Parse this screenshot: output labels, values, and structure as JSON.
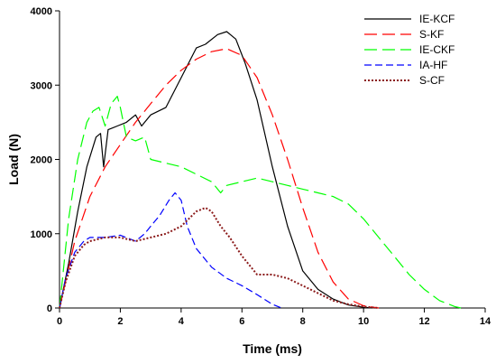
{
  "chart_data": {
    "type": "line",
    "title": "",
    "xlabel": "Time (ms)",
    "ylabel": "Load (N)",
    "xlim": [
      0,
      14
    ],
    "ylim": [
      0,
      4000
    ],
    "xticks": [
      "0",
      "2",
      "4",
      "6",
      "8",
      "10",
      "12",
      "14"
    ],
    "yticks": [
      "0",
      "1000",
      "2000",
      "3000",
      "4000"
    ],
    "grid": false,
    "legend": "top-right",
    "series": [
      {
        "name": "IE-KCF",
        "color": "#000000",
        "dash": "solid",
        "x": [
          0,
          0.3,
          0.6,
          0.9,
          1.2,
          1.35,
          1.45,
          1.6,
          1.9,
          2.2,
          2.5,
          2.7,
          3.0,
          3.5,
          4.0,
          4.5,
          4.8,
          5.2,
          5.5,
          5.8,
          6.1,
          6.5,
          7.0,
          7.5,
          8.0,
          8.5,
          9.0,
          9.5,
          10.0,
          10.3
        ],
        "y": [
          0,
          600,
          1300,
          1900,
          2300,
          2350,
          1900,
          2400,
          2450,
          2500,
          2600,
          2450,
          2600,
          2700,
          3100,
          3500,
          3550,
          3680,
          3720,
          3620,
          3300,
          2800,
          1900,
          1100,
          500,
          250,
          120,
          40,
          10,
          0
        ]
      },
      {
        "name": "S-KF",
        "color": "#ff0000",
        "dash": "long",
        "x": [
          0,
          0.5,
          1.0,
          1.5,
          2.0,
          2.5,
          3.0,
          3.5,
          4.0,
          4.5,
          5.0,
          5.5,
          6.0,
          6.5,
          7.0,
          7.5,
          8.0,
          8.5,
          9.0,
          9.5,
          10.0,
          10.5
        ],
        "y": [
          0,
          900,
          1500,
          1900,
          2200,
          2500,
          2750,
          3000,
          3200,
          3350,
          3450,
          3490,
          3400,
          3100,
          2600,
          2000,
          1350,
          750,
          350,
          120,
          30,
          0
        ]
      },
      {
        "name": "IE-CKF",
        "color": "#00ff00",
        "dash": "long",
        "x": [
          0,
          0.3,
          0.6,
          0.9,
          1.1,
          1.3,
          1.5,
          1.7,
          1.9,
          2.0,
          2.2,
          2.5,
          2.8,
          3.0,
          3.5,
          4.0,
          4.5,
          5.0,
          5.3,
          5.5,
          6.0,
          6.5,
          7.0,
          7.5,
          8.0,
          8.5,
          9.0,
          9.5,
          10.0,
          10.5,
          11.0,
          11.5,
          12.0,
          12.5,
          13.0,
          13.2
        ],
        "y": [
          0,
          1200,
          2000,
          2500,
          2650,
          2700,
          2450,
          2750,
          2850,
          2700,
          2300,
          2250,
          2300,
          2000,
          1950,
          1900,
          1800,
          1700,
          1550,
          1650,
          1700,
          1750,
          1700,
          1650,
          1600,
          1550,
          1500,
          1400,
          1200,
          950,
          700,
          450,
          250,
          100,
          20,
          0
        ]
      },
      {
        "name": "IA-HF",
        "color": "#0000ff",
        "dash": "short",
        "x": [
          0,
          0.2,
          0.5,
          0.8,
          1.0,
          1.5,
          2.0,
          2.5,
          2.8,
          3.0,
          3.3,
          3.6,
          3.8,
          4.0,
          4.2,
          4.5,
          5.0,
          5.5,
          6.0,
          6.5,
          7.0,
          7.3
        ],
        "y": [
          0,
          400,
          750,
          900,
          950,
          950,
          980,
          900,
          1000,
          1100,
          1250,
          1450,
          1550,
          1450,
          1100,
          800,
          550,
          400,
          300,
          180,
          50,
          0
        ]
      },
      {
        "name": "S-CF",
        "color": "#8b1a1a",
        "dash": "dotted",
        "x": [
          0,
          0.2,
          0.5,
          0.8,
          1.0,
          1.5,
          2.0,
          2.5,
          3.0,
          3.5,
          4.0,
          4.5,
          4.8,
          5.0,
          5.3,
          5.6,
          6.0,
          6.3,
          6.5,
          7.0,
          7.5,
          8.0,
          8.5,
          9.0,
          9.5,
          10.0,
          10.5
        ],
        "y": [
          0,
          350,
          700,
          850,
          900,
          950,
          950,
          900,
          950,
          1000,
          1100,
          1300,
          1350,
          1300,
          1100,
          950,
          700,
          550,
          450,
          450,
          400,
          300,
          200,
          100,
          50,
          20,
          0
        ]
      }
    ]
  }
}
